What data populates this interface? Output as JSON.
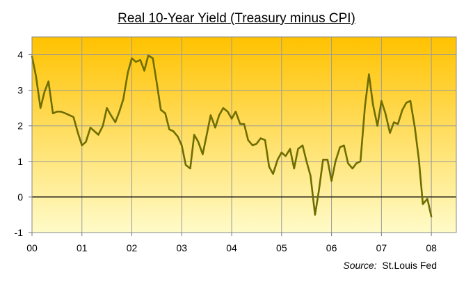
{
  "chart_data": {
    "type": "line",
    "title": "Real 10-Year Yield (Treasury minus CPI)",
    "xlabel": "",
    "ylabel": "",
    "xlim": [
      0,
      8.5
    ],
    "ylim": [
      -1,
      4.5
    ],
    "x_ticks": [
      {
        "value": 0,
        "label": "00"
      },
      {
        "value": 1,
        "label": "01"
      },
      {
        "value": 2,
        "label": "02"
      },
      {
        "value": 3,
        "label": "03"
      },
      {
        "value": 4,
        "label": "04"
      },
      {
        "value": 5,
        "label": "05"
      },
      {
        "value": 6,
        "label": "06"
      },
      {
        "value": 7,
        "label": "07"
      },
      {
        "value": 8,
        "label": "08"
      }
    ],
    "y_ticks": [
      {
        "value": -1,
        "label": "-1"
      },
      {
        "value": 0,
        "label": "0"
      },
      {
        "value": 1,
        "label": "1"
      },
      {
        "value": 2,
        "label": "2"
      },
      {
        "value": 3,
        "label": "3"
      },
      {
        "value": 4,
        "label": "4"
      }
    ],
    "grid": true,
    "background_gradient": [
      "#ffc200",
      "#fffbc8"
    ],
    "line_color": "#6e6e00",
    "zero_line_color": "#000000",
    "series": [
      {
        "x": [
          0.0,
          0.08,
          0.17,
          0.25,
          0.33,
          0.42,
          0.5,
          0.58,
          0.67,
          0.75,
          0.83,
          0.92,
          1.0,
          1.08,
          1.17,
          1.25,
          1.33,
          1.42,
          1.5,
          1.58,
          1.67,
          1.75,
          1.83,
          1.92,
          2.0,
          2.08,
          2.17,
          2.25,
          2.33,
          2.42,
          2.5,
          2.58,
          2.67,
          2.75,
          2.83,
          2.92,
          3.0,
          3.08,
          3.17,
          3.25,
          3.33,
          3.42,
          3.5,
          3.58,
          3.67,
          3.75,
          3.83,
          3.92,
          4.0,
          4.08,
          4.17,
          4.25,
          4.33,
          4.42,
          4.5,
          4.58,
          4.67,
          4.75,
          4.83,
          4.92,
          5.0,
          5.08,
          5.17,
          5.25,
          5.33,
          5.42,
          5.5,
          5.58,
          5.67,
          5.75,
          5.83,
          5.92,
          6.0,
          6.08,
          6.17,
          6.25,
          6.33,
          6.42,
          6.5,
          6.58,
          6.67,
          6.75,
          6.83,
          6.92,
          7.0,
          7.08,
          7.17,
          7.25,
          7.33,
          7.42,
          7.5,
          7.58,
          7.67,
          7.75,
          7.83,
          7.92,
          8.0
        ],
        "values": [
          3.95,
          3.4,
          2.5,
          2.95,
          3.25,
          2.35,
          2.4,
          2.4,
          2.35,
          2.3,
          2.25,
          1.8,
          1.45,
          1.55,
          1.95,
          1.85,
          1.75,
          2.0,
          2.5,
          2.3,
          2.1,
          2.4,
          2.75,
          3.5,
          3.9,
          3.8,
          3.85,
          3.55,
          3.98,
          3.9,
          3.2,
          2.45,
          2.35,
          1.9,
          1.85,
          1.7,
          1.45,
          0.9,
          0.8,
          1.75,
          1.55,
          1.2,
          1.75,
          2.3,
          1.95,
          2.3,
          2.5,
          2.4,
          2.2,
          2.4,
          2.05,
          2.05,
          1.6,
          1.45,
          1.5,
          1.65,
          1.6,
          0.85,
          0.65,
          1.05,
          1.25,
          1.15,
          1.35,
          0.8,
          1.35,
          1.45,
          1.0,
          0.6,
          -0.5,
          0.2,
          1.05,
          1.05,
          0.45,
          1.0,
          1.4,
          1.45,
          0.95,
          0.8,
          0.95,
          1.0,
          2.55,
          3.45,
          2.6,
          2.0,
          2.7,
          2.35,
          1.8,
          2.1,
          2.05,
          2.45,
          2.65,
          2.7,
          1.95,
          1.05,
          -0.2,
          -0.05,
          -0.55
        ]
      }
    ]
  },
  "source": {
    "prefix": "Source:",
    "name": "St.Louis Fed"
  }
}
